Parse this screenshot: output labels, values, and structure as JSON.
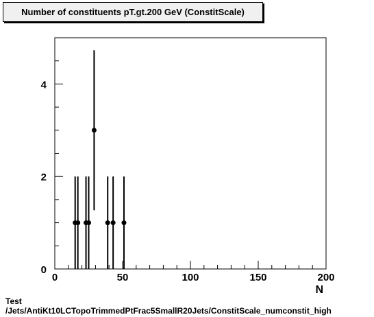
{
  "chart_data": {
    "type": "scatter",
    "title": "Number of constituents pT.gt.200 GeV (ConstitScale)",
    "xlabel": "N",
    "ylabel": "",
    "xlim": [
      0,
      200
    ],
    "ylim": [
      0,
      5
    ],
    "x_ticks": [
      0,
      50,
      100,
      150,
      200
    ],
    "y_ticks": [
      0,
      2,
      4
    ],
    "x_tick_labels": [
      "0",
      "50",
      "100",
      "150",
      "200"
    ],
    "y_tick_labels": [
      "0",
      "2",
      "4"
    ],
    "grid": false,
    "legend": "none",
    "series": [
      {
        "points": [
          {
            "x": 15,
            "y": 1,
            "err": 1.0
          },
          {
            "x": 17,
            "y": 1,
            "err": 1.0
          },
          {
            "x": 23,
            "y": 1,
            "err": 1.0
          },
          {
            "x": 25,
            "y": 1,
            "err": 1.0
          },
          {
            "x": 29,
            "y": 3,
            "err": 1.73
          },
          {
            "x": 39,
            "y": 1,
            "err": 1.0
          },
          {
            "x": 43,
            "y": 1,
            "err": 1.0
          },
          {
            "x": 51,
            "y": 1,
            "err": 1.0
          }
        ]
      }
    ]
  },
  "footer": {
    "line1": "Test",
    "line2": "/Jets/AntiKt10LCTopoTrimmedPtFrac5SmallR20Jets/ConstitScale_numconstit_high"
  }
}
